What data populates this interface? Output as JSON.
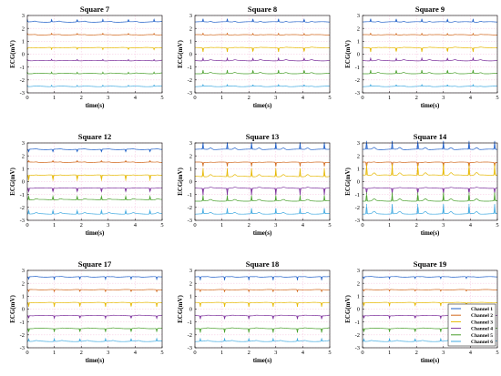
{
  "chart_data": [
    {
      "type": "line",
      "title": "Square 7",
      "xlabel": "time(s)",
      "ylabel": "ECG(mV)",
      "xlim": [
        0,
        5
      ],
      "ylim": [
        -3,
        3
      ],
      "baselines": [
        2.5,
        1.5,
        0.5,
        -0.5,
        -1.5,
        -2.5
      ],
      "beats": [
        0.0,
        0.9,
        1.85,
        2.8,
        3.75,
        4.7
      ],
      "amplitude": [
        0.18,
        0.1,
        0.14,
        0.1,
        0.12,
        0.1
      ],
      "direction": [
        1,
        1,
        -1,
        1,
        1,
        1
      ]
    },
    {
      "type": "line",
      "title": "Square 8",
      "xlabel": "time(s)",
      "ylabel": "ECG(mV)",
      "xlim": [
        0,
        5
      ],
      "ylim": [
        -3,
        3
      ],
      "baselines": [
        2.5,
        1.5,
        0.5,
        -0.5,
        -1.5,
        -2.5
      ],
      "beats": [
        0.3,
        1.2,
        2.15,
        3.1,
        4.05
      ],
      "amplitude": [
        0.22,
        0.12,
        0.3,
        0.2,
        0.25,
        0.12
      ],
      "direction": [
        1,
        1,
        -1,
        1,
        1,
        1
      ]
    },
    {
      "type": "line",
      "title": "Square 9",
      "xlabel": "time(s)",
      "ylabel": "ECG(mV)",
      "xlim": [
        0,
        5
      ],
      "ylim": [
        -3,
        3
      ],
      "baselines": [
        2.5,
        1.5,
        0.5,
        -0.5,
        -1.5,
        -2.5
      ],
      "beats": [
        0.3,
        1.25,
        2.2,
        3.15,
        4.1
      ],
      "amplitude": [
        0.22,
        0.12,
        0.3,
        0.2,
        0.25,
        0.12
      ],
      "direction": [
        1,
        1,
        -1,
        1,
        1,
        1
      ]
    },
    {
      "type": "line",
      "title": "Square 12",
      "xlabel": "time(s)",
      "ylabel": "ECG(mV)",
      "xlim": [
        0,
        5
      ],
      "ylim": [
        -3,
        3
      ],
      "baselines": [
        2.5,
        1.5,
        0.5,
        -0.5,
        -1.4,
        -2.5
      ],
      "beats": [
        0.05,
        0.95,
        1.85,
        2.75,
        3.65,
        4.55
      ],
      "amplitude": [
        0.2,
        0.12,
        0.4,
        0.3,
        0.3,
        0.3
      ],
      "direction": [
        -1,
        1,
        -1,
        -1,
        1,
        1
      ]
    },
    {
      "type": "line",
      "title": "Square 13",
      "xlabel": "time(s)",
      "ylabel": "ECG(mV)",
      "xlim": [
        0,
        5
      ],
      "ylim": [
        -3,
        3
      ],
      "baselines": [
        2.5,
        1.5,
        0.4,
        -0.5,
        -1.5,
        -2.5
      ],
      "beats": [
        0.3,
        1.2,
        2.1,
        3.0,
        3.9,
        4.8
      ],
      "amplitude": [
        0.5,
        0.3,
        0.6,
        0.5,
        0.4,
        0.4
      ],
      "direction": [
        1,
        -1,
        1,
        -1,
        1,
        1
      ]
    },
    {
      "type": "line",
      "title": "Square 14",
      "xlabel": "time(s)",
      "ylabel": "ECG(mV)",
      "xlim": [
        0,
        5
      ],
      "ylim": [
        -3,
        3
      ],
      "baselines": [
        2.5,
        1.5,
        0.5,
        -0.5,
        -1.5,
        -2.5
      ],
      "beats": [
        0.15,
        1.1,
        2.05,
        3.0,
        3.95,
        4.9
      ],
      "amplitude": [
        0.6,
        0.4,
        0.8,
        0.4,
        0.6,
        0.7
      ],
      "direction": [
        1,
        -1,
        1,
        -1,
        1,
        1
      ]
    },
    {
      "type": "line",
      "title": "Square 17",
      "xlabel": "time(s)",
      "ylabel": "ECG(mV)",
      "xlim": [
        0,
        5
      ],
      "ylim": [
        -3,
        3
      ],
      "baselines": [
        2.5,
        1.5,
        0.5,
        -0.5,
        -1.5,
        -2.5
      ],
      "beats": [
        0.05,
        1.0,
        1.95,
        2.9,
        3.85,
        4.8
      ],
      "amplitude": [
        0.2,
        0.15,
        0.3,
        0.2,
        0.25,
        0.2
      ],
      "direction": [
        -1,
        -1,
        -1,
        -1,
        -1,
        1
      ]
    },
    {
      "type": "line",
      "title": "Square 18",
      "xlabel": "time(s)",
      "ylabel": "ECG(mV)",
      "xlim": [
        0,
        5
      ],
      "ylim": [
        -3,
        3
      ],
      "baselines": [
        2.5,
        1.5,
        0.5,
        -0.5,
        -1.5,
        -2.5
      ],
      "beats": [
        0.2,
        1.1,
        2.0,
        2.9,
        3.8,
        4.7
      ],
      "amplitude": [
        0.25,
        0.15,
        0.3,
        0.25,
        0.3,
        0.2
      ],
      "direction": [
        -1,
        -1,
        -1,
        -1,
        -1,
        1
      ]
    },
    {
      "type": "line",
      "title": "Square 19",
      "xlabel": "time(s)",
      "ylabel": "ECG(mV)",
      "xlim": [
        0,
        5
      ],
      "ylim": [
        -3,
        3
      ],
      "baselines": [
        2.5,
        1.5,
        0.5,
        -0.5,
        -1.5,
        -2.5
      ],
      "beats": [
        0.05,
        1.0,
        1.95,
        2.9,
        3.85
      ],
      "amplitude": [
        0.15,
        0.12,
        0.25,
        0.2,
        0.25,
        0.2
      ],
      "direction": [
        -1,
        -1,
        -1,
        -1,
        -1,
        1
      ],
      "legend": "bottom-right"
    }
  ],
  "series": [
    {
      "name": "Channel 1",
      "color": "#1f5fc8"
    },
    {
      "name": "Channel 2",
      "color": "#d2691e"
    },
    {
      "name": "Channel 3",
      "color": "#e6b800"
    },
    {
      "name": "Channel 4",
      "color": "#7b2d9b"
    },
    {
      "name": "Channel 5",
      "color": "#4aa02c"
    },
    {
      "name": "Channel 6",
      "color": "#3fa9e0"
    }
  ],
  "x_ticks": [
    0,
    1,
    2,
    3,
    4,
    5
  ],
  "y_ticks": [
    -3,
    -2,
    -1,
    0,
    1,
    2,
    3
  ],
  "grid": true,
  "grid_color": "#f4b3d6"
}
